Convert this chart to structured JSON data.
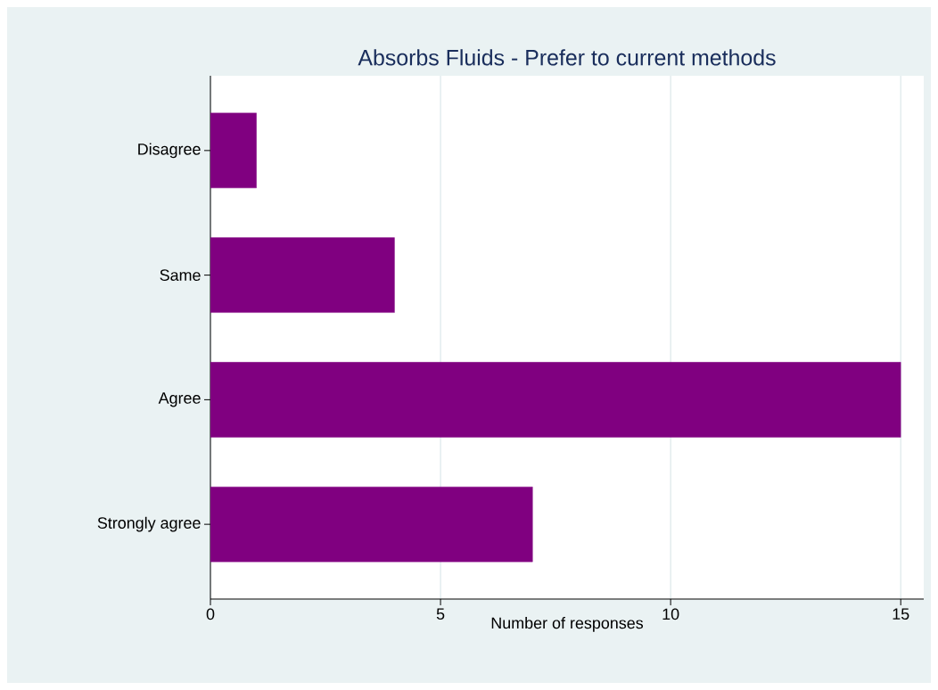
{
  "chart_data": {
    "type": "bar",
    "orientation": "horizontal",
    "title": "Absorbs Fluids - Prefer to current methods",
    "xlabel": "Number of responses",
    "categories": [
      "Disagree",
      "Same",
      "Agree",
      "Strongly agree"
    ],
    "values": [
      1,
      4,
      15,
      7
    ],
    "color": "#800080",
    "xlim": [
      0,
      15.5
    ],
    "xticks": [
      0,
      5,
      10,
      15
    ],
    "grid": "x"
  }
}
